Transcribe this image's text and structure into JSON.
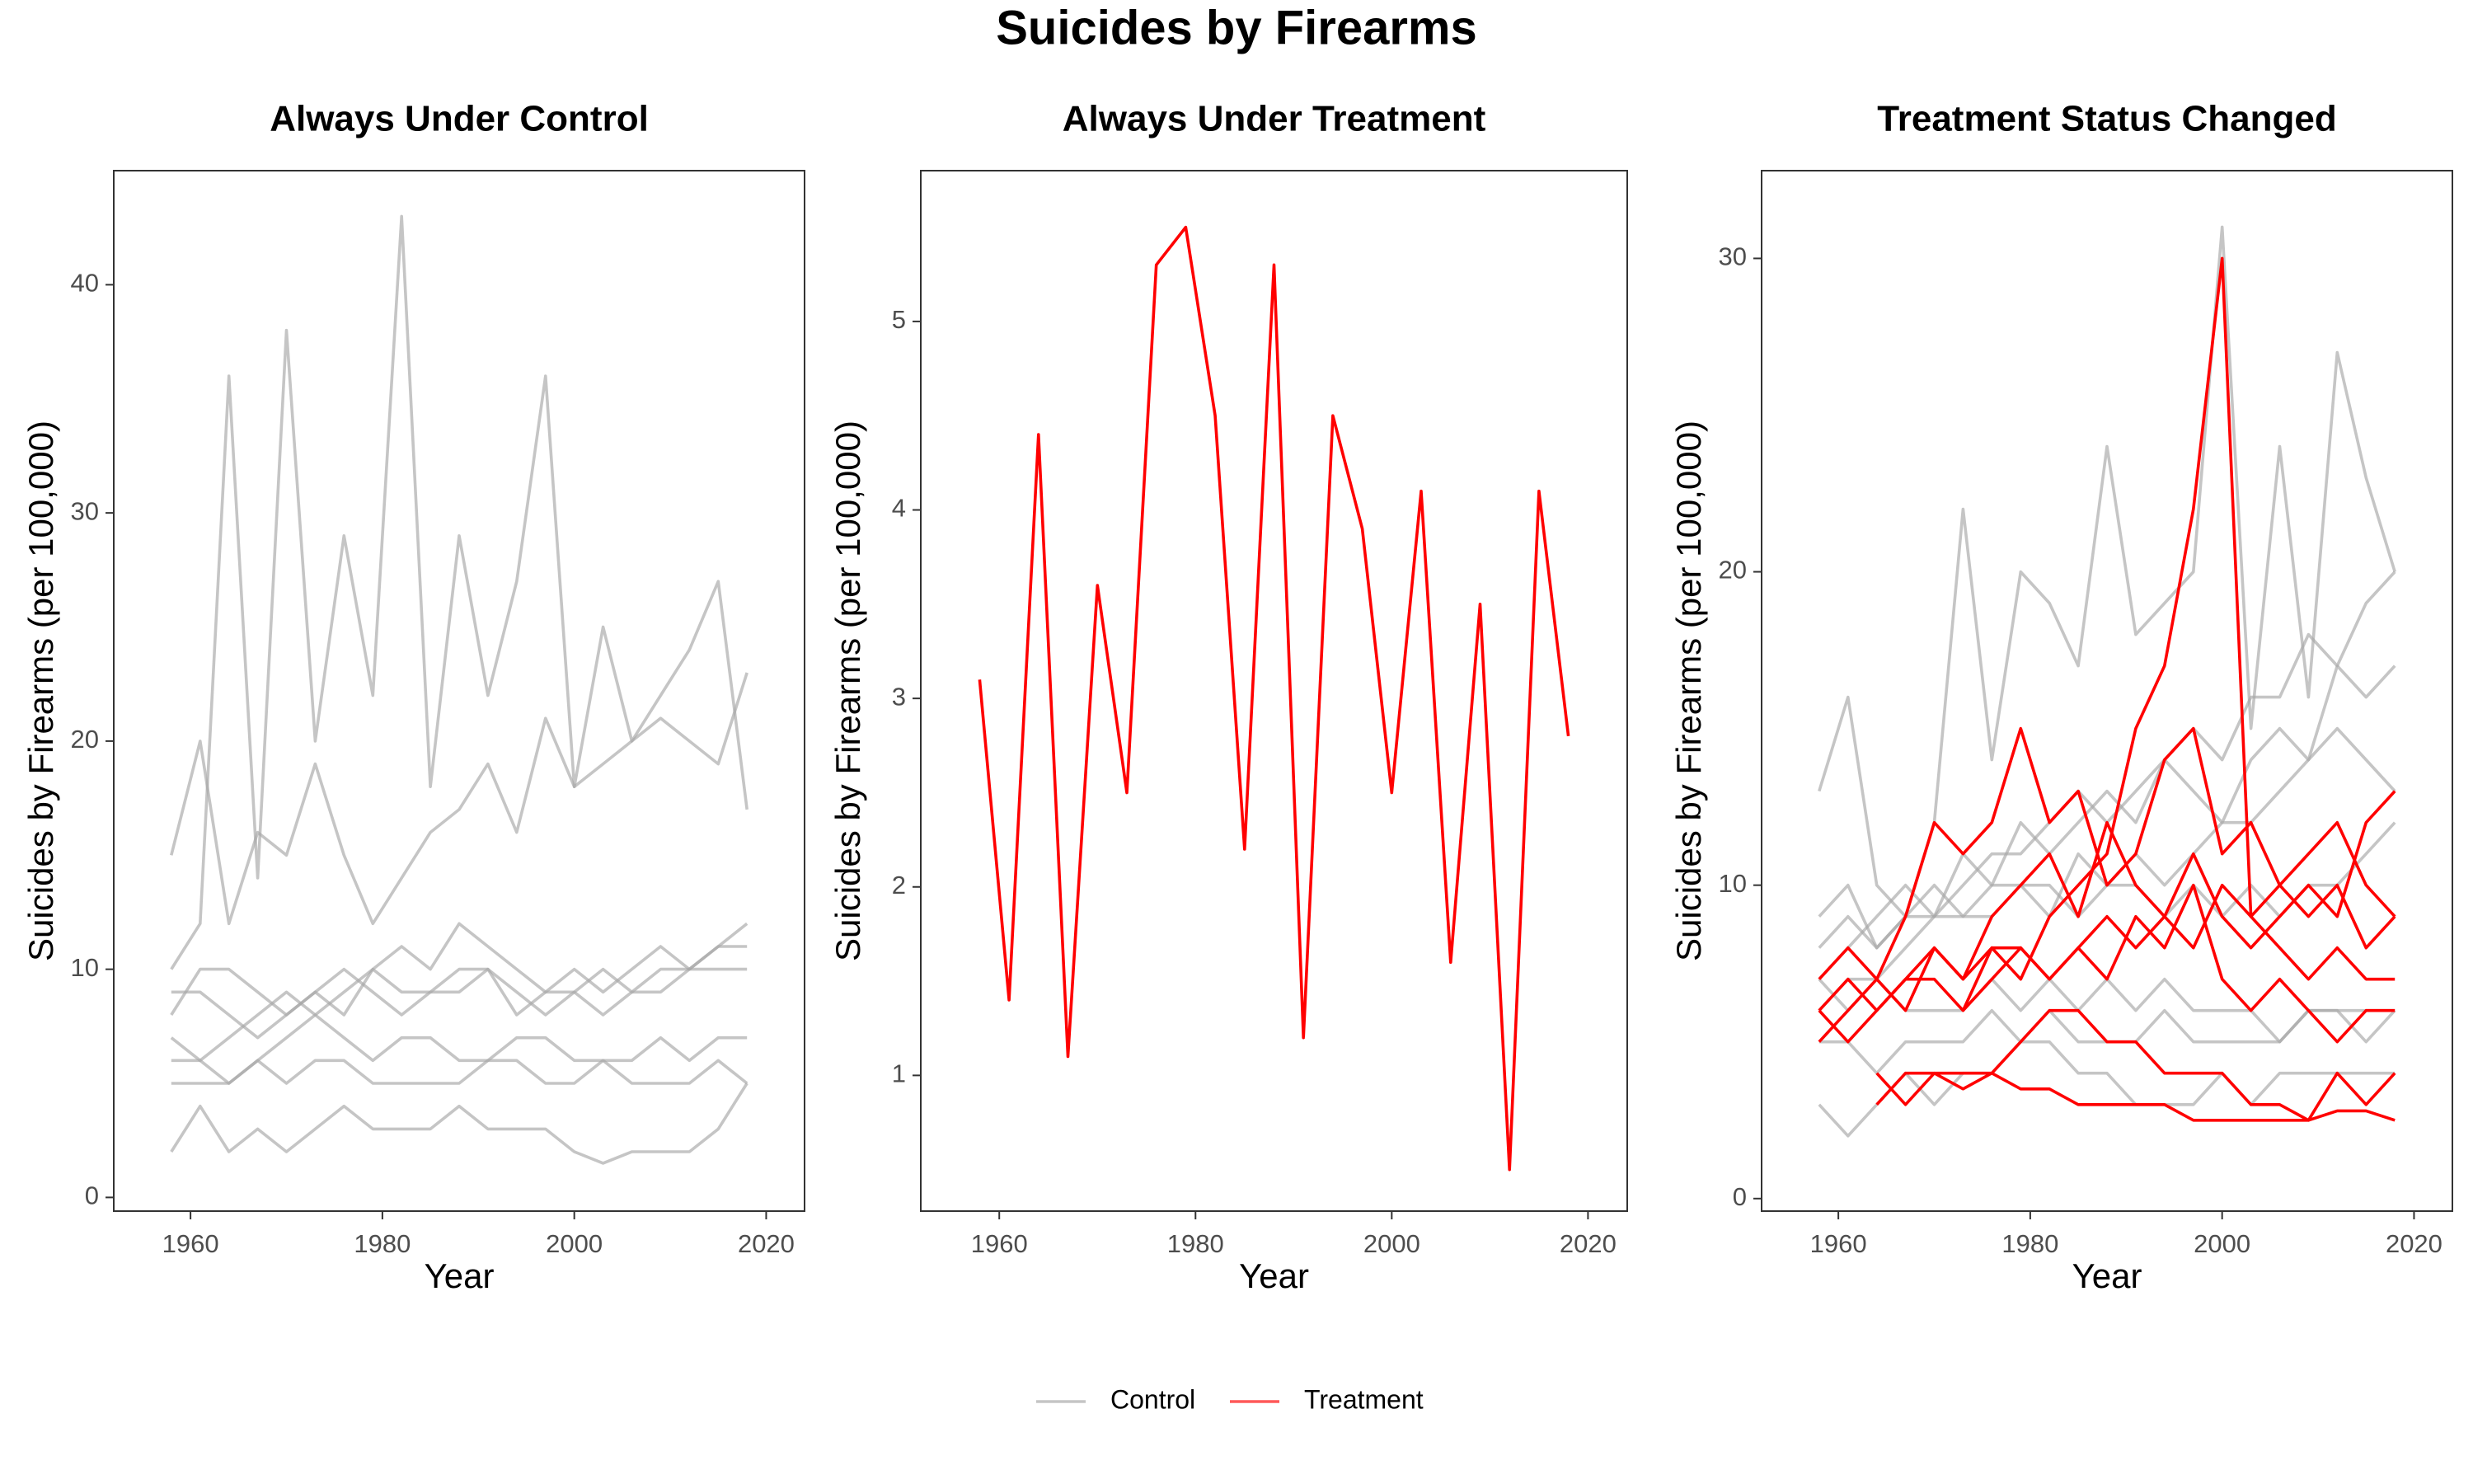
{
  "title": "Suicides by Firearms",
  "chart_data": [
    {
      "type": "line",
      "title": "Always Under Control",
      "x_label": "Year",
      "y_label": "Suicides by Firearms (per 100,000)",
      "x": [
        1958,
        1961,
        1964,
        1967,
        1970,
        1973,
        1976,
        1979,
        1982,
        1985,
        1988,
        1991,
        1994,
        1997,
        2000,
        2003,
        2006,
        2009,
        2012,
        2015,
        2018
      ],
      "xlim": [
        1952,
        2024
      ],
      "ylim": [
        -0.6,
        45
      ],
      "xticks": [
        1960,
        1980,
        2000,
        2020
      ],
      "yticks": [
        0,
        10,
        20,
        30,
        40
      ],
      "series": [
        {
          "color": "#a6a6a6",
          "values": [
            10,
            12,
            36,
            14,
            38,
            20,
            29,
            22,
            43,
            18,
            29,
            22,
            27,
            36,
            18,
            25,
            20,
            22,
            24,
            27,
            17
          ]
        },
        {
          "color": "#a6a6a6",
          "values": [
            6,
            6,
            7,
            8,
            9,
            8,
            9,
            10,
            11,
            10,
            12,
            11,
            10,
            9,
            10,
            9,
            10,
            11,
            10,
            11,
            11
          ]
        },
        {
          "color": "#a6a6a6",
          "values": [
            5,
            5,
            5,
            6,
            7,
            8,
            7,
            6,
            7,
            7,
            6,
            6,
            7,
            7,
            6,
            6,
            6,
            7,
            6,
            7,
            7
          ]
        },
        {
          "color": "#a6a6a6",
          "values": [
            2,
            4,
            2,
            3,
            2,
            3,
            4,
            3,
            3,
            3,
            4,
            3,
            3,
            3,
            2,
            1.5,
            2,
            2,
            2,
            3,
            5
          ]
        },
        {
          "color": "#a6a6a6",
          "values": [
            8,
            10,
            10,
            9,
            8,
            9,
            10,
            9,
            8,
            9,
            9,
            10,
            8,
            9,
            9,
            8,
            9,
            9,
            10,
            10,
            10
          ]
        },
        {
          "color": "#a6a6a6",
          "values": [
            15,
            20,
            12,
            16,
            15,
            19,
            15,
            12,
            14,
            16,
            17,
            19,
            16,
            21,
            18,
            19,
            20,
            21,
            20,
            19,
            23
          ]
        },
        {
          "color": "#a6a6a6",
          "values": [
            7,
            6,
            5,
            6,
            5,
            6,
            6,
            5,
            5,
            5,
            5,
            6,
            6,
            5,
            5,
            6,
            5,
            5,
            5,
            6,
            5
          ]
        },
        {
          "color": "#a6a6a6",
          "values": [
            9,
            9,
            8,
            7,
            8,
            9,
            8,
            10,
            9,
            9,
            10,
            10,
            9,
            8,
            9,
            10,
            9,
            10,
            10,
            11,
            12
          ]
        }
      ]
    },
    {
      "type": "line",
      "title": "Always Under Treatment",
      "x_label": "Year",
      "y_label": "Suicides by Firearms (per 100,000)",
      "x": [
        1958,
        1961,
        1964,
        1967,
        1970,
        1973,
        1976,
        1979,
        1982,
        1985,
        1988,
        1991,
        1994,
        1997,
        2000,
        2003,
        2006,
        2009,
        2012,
        2015,
        2018
      ],
      "xlim": [
        1952,
        2024
      ],
      "ylim": [
        0.28,
        5.8
      ],
      "xticks": [
        1960,
        1980,
        2000,
        2020
      ],
      "yticks": [
        1,
        2,
        3,
        4,
        5
      ],
      "series": [
        {
          "color": "#ff0000",
          "values": [
            3.1,
            1.4,
            4.4,
            1.1,
            3.6,
            2.5,
            5.3,
            5.5,
            4.5,
            2.2,
            5.3,
            1.2,
            4.5,
            3.9,
            2.5,
            4.1,
            1.6,
            3.5,
            0.5,
            4.1,
            2.8
          ]
        }
      ]
    },
    {
      "type": "line",
      "title": "Treatment Status Changed",
      "x_label": "Year",
      "y_label": "Suicides by Firearms (per 100,000)",
      "x": [
        1958,
        1961,
        1964,
        1967,
        1970,
        1973,
        1976,
        1979,
        1982,
        1985,
        1988,
        1991,
        1994,
        1997,
        2000,
        2003,
        2006,
        2009,
        2012,
        2015,
        2018
      ],
      "xlim": [
        1952,
        2024
      ],
      "ylim": [
        -0.4,
        32.8
      ],
      "xticks": [
        1960,
        1980,
        2000,
        2020
      ],
      "yticks": [
        0,
        10,
        20,
        30
      ],
      "series": [
        {
          "color": "#a6a6a6",
          "values": [
            13,
            16,
            10,
            9,
            12,
            22,
            14,
            20,
            19,
            17,
            24,
            18,
            19,
            20,
            31,
            15,
            24,
            16,
            27,
            23,
            20
          ]
        },
        {
          "color": "#a6a6a6",
          "values": [
            7,
            8,
            9,
            10,
            9,
            11,
            10,
            12,
            11,
            12,
            13,
            12,
            14,
            13,
            12,
            14,
            15,
            14,
            17,
            16,
            17
          ]
        },
        {
          "color": "#a6a6a6",
          "values": [
            6,
            7,
            7,
            8,
            9,
            9,
            10,
            10,
            9,
            11,
            10,
            11,
            10,
            11,
            12,
            12,
            13,
            14,
            15,
            14,
            13
          ]
        },
        {
          "color": "#a6a6a6",
          "values": [
            3,
            2,
            3,
            4,
            3,
            4,
            4,
            5,
            5,
            4,
            4,
            3,
            3,
            3,
            4,
            3,
            4,
            4,
            4,
            4,
            4
          ]
        },
        {
          "color": "#a6a6a6",
          "values": [
            9,
            10,
            8,
            9,
            10,
            9,
            9,
            10,
            10,
            9,
            10,
            10,
            9,
            10,
            9,
            10,
            9,
            10,
            10,
            11,
            12
          ]
        },
        {
          "color": "#a6a6a6",
          "values": [
            7,
            6,
            7,
            6,
            6,
            6,
            7,
            6,
            7,
            6,
            7,
            6,
            7,
            6,
            6,
            6,
            5,
            6,
            6,
            6,
            6
          ]
        },
        {
          "color": "#a6a6a6",
          "values": [
            8,
            9,
            8,
            9,
            9,
            10,
            11,
            11,
            12,
            13,
            12,
            13,
            14,
            15,
            14,
            16,
            16,
            18,
            17,
            19,
            20
          ]
        },
        {
          "color": "#a6a6a6",
          "values": [
            5,
            5,
            4,
            5,
            5,
            5,
            6,
            5,
            6,
            5,
            5,
            5,
            6,
            5,
            5,
            5,
            5,
            6,
            6,
            5,
            6
          ]
        },
        {
          "color": "#ff0000",
          "values": [
            6,
            5,
            6,
            7,
            8,
            7,
            9,
            10,
            11,
            9,
            12,
            10,
            9,
            11,
            9,
            8,
            9,
            10,
            9,
            12,
            13
          ]
        },
        {
          "color": "#ff0000",
          "values": [
            null,
            null,
            3,
            4,
            4,
            3.5,
            4,
            3.5,
            3.5,
            3,
            3,
            3,
            3,
            2.5,
            2.5,
            2.5,
            2.5,
            2.5,
            2.8,
            2.8,
            2.5
          ]
        },
        {
          "color": "#ff0000",
          "values": [
            null,
            null,
            4,
            3,
            4,
            4,
            4,
            5,
            6,
            6,
            5,
            5,
            4,
            4,
            4,
            3,
            3,
            2.5,
            4,
            3,
            4
          ]
        },
        {
          "color": "#ff0000",
          "values": [
            7,
            8,
            7,
            9,
            12,
            11,
            12,
            15,
            12,
            13,
            10,
            11,
            14,
            15,
            11,
            12,
            10,
            11,
            12,
            10,
            9
          ]
        },
        {
          "color": "#ff0000",
          "values": [
            5,
            6,
            7,
            6,
            8,
            7,
            8,
            7,
            9,
            10,
            11,
            15,
            17,
            22,
            30,
            9,
            10,
            9,
            10,
            8,
            9
          ]
        },
        {
          "color": "#ff0000",
          "values": [
            null,
            null,
            null,
            null,
            null,
            6,
            7,
            8,
            7,
            8,
            9,
            8,
            9,
            8,
            10,
            9,
            8,
            7,
            8,
            7,
            7
          ]
        },
        {
          "color": "#ff0000",
          "values": [
            6,
            7,
            6,
            7,
            7,
            6,
            8,
            8,
            7,
            8,
            7,
            9,
            8,
            10,
            7,
            6,
            7,
            6,
            5,
            6,
            6
          ]
        }
      ]
    }
  ],
  "legend": {
    "position": "bottom",
    "items": [
      {
        "name": "Control",
        "color": "#a6a6a6"
      },
      {
        "name": "Treatment",
        "color": "#ff0000"
      }
    ]
  }
}
